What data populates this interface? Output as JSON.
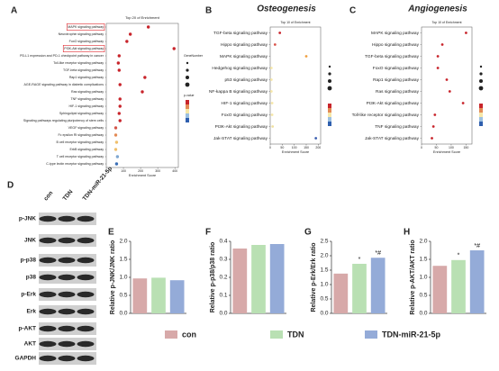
{
  "panels": [
    "A",
    "B",
    "C",
    "D",
    "E",
    "F",
    "G",
    "H"
  ],
  "blot": {
    "lanes": [
      "con",
      "TDN",
      "TDN-miR-21-5p"
    ],
    "rows": [
      "p-JNK",
      "JNK",
      "p-p38",
      "p38",
      "p-Erk",
      "Erk",
      "p-AKT",
      "AKT",
      "GAPDH"
    ]
  },
  "legend": [
    {
      "name": "con",
      "color": "#d7a9a9"
    },
    {
      "name": "TDN",
      "color": "#b9e0b3"
    },
    {
      "name": "TDN-miR-21-5p",
      "color": "#94abd8"
    }
  ],
  "chart_data": [
    {
      "type": "dot",
      "title": "Top 20 of Enrichment",
      "x_label": "Enrichment Score",
      "size_legend_title": "GeneNumber",
      "color_legend_title": "p-value",
      "categories": [
        "MAPK signaling pathway",
        "Neurotrophin signaling pathway",
        "FoxO signaling pathway",
        "PI3K-Akt signaling pathway",
        "PD-L1 expression and PD-1 checkpoint pathway in cancer",
        "Toll-like receptor signaling pathway",
        "TGF-beta signaling pathway",
        "Rap1 signaling pathway",
        "AGE-RAGE signaling pathway in diabetic complications",
        "Ras signaling pathway",
        "TNF signaling pathway",
        "HIF-1 signaling pathway",
        "Sphingolipid signaling pathway",
        "Signaling pathways regulating pluripotency of stem cells",
        "VEGF signaling pathway",
        "Fc epsilon RI signaling pathway",
        "B cell receptor signaling pathway",
        "ErbB signaling pathway",
        "T cell receptor signaling pathway",
        "C-type lectin receptor signaling pathway"
      ],
      "values": [
        245,
        140,
        120,
        395,
        75,
        70,
        75,
        225,
        80,
        210,
        80,
        80,
        75,
        80,
        55,
        55,
        60,
        55,
        65,
        60
      ],
      "colors": [
        "#c8242b",
        "#c8242b",
        "#c8242b",
        "#c8242b",
        "#c8242b",
        "#c8242b",
        "#c8242b",
        "#c8242b",
        "#c8242b",
        "#c8242b",
        "#c8242b",
        "#c8242b",
        "#c8242b",
        "#c8242b",
        "#d4564a",
        "#e38a55",
        "#f0c06d",
        "#f0c06d",
        "#7fa7d0",
        "#3b6fb6"
      ],
      "boxed": [
        true,
        false,
        false,
        true,
        false,
        false,
        false,
        false,
        false,
        false,
        false,
        false,
        false,
        false,
        false,
        false,
        false,
        false,
        false,
        false
      ],
      "xlim": [
        0,
        420
      ],
      "xticks": [
        0,
        100,
        200,
        300,
        400
      ]
    },
    {
      "type": "dot",
      "title": "Osteogenesis",
      "subtitle": "Top 10 of Enrichment",
      "x_label": "Enrichment Score",
      "categories": [
        "TGF-beta signaling pathway",
        "Hippo signaling pathway",
        "MAPK signaling pathway",
        "Hedgehog signaling pathway",
        "p53 signaling pathway",
        "NF-kappa B signaling pathway",
        "HIF-1 signaling pathway",
        "FoxO signaling pathway",
        "PI3K-Akt signaling pathway",
        "Jak-STAT signaling pathway"
      ],
      "values": [
        40,
        20,
        150,
        5,
        5,
        5,
        8,
        8,
        10,
        190
      ],
      "colors": [
        "#c8242b",
        "#d9534a",
        "#f0a040",
        "#f6e7a8",
        "#f6e7a8",
        "#f6e7a8",
        "#f6e7a8",
        "#f6e7a8",
        "#f0e0a0",
        "#3b5fb0"
      ],
      "label_colors": [
        "#333333",
        "#333333",
        "#e0242b",
        "#333333",
        "#333333",
        "#333333",
        "#333333",
        "#333333",
        "#e0242b",
        "#333333"
      ],
      "xlim": [
        0,
        210
      ],
      "xticks": [
        0,
        50,
        100,
        150,
        200
      ]
    },
    {
      "type": "dot",
      "title": "Angiogenesis",
      "subtitle": "Top 10 of Enrichment",
      "x_label": "Enrichment Score",
      "categories": [
        "MAPK signaling pathway",
        "Hippo signaling pathway",
        "TGF-beta signaling pathway",
        "FoxO signaling pathway",
        "Rap1 signaling pathway",
        "Ras signaling pathway",
        "PI3K-Akt signaling pathway",
        "Toll-like receptor signaling pathway",
        "TNF signaling pathway",
        "Jak-STAT signaling pathway"
      ],
      "values": [
        150,
        70,
        55,
        55,
        85,
        95,
        140,
        45,
        40,
        35
      ],
      "colors": [
        "#c8242b",
        "#c8242b",
        "#c8242b",
        "#c8242b",
        "#c8242b",
        "#c8242b",
        "#c8242b",
        "#c8242b",
        "#c8242b",
        "#c8242b"
      ],
      "label_colors": [
        "#e0242b",
        "#333333",
        "#333333",
        "#333333",
        "#333333",
        "#333333",
        "#e0242b",
        "#333333",
        "#333333",
        "#333333"
      ],
      "xlim": [
        0,
        170
      ],
      "xticks": [
        0,
        50,
        100,
        150
      ]
    },
    {
      "type": "bar",
      "y_label": "Relative p-JNK/JNK ratio",
      "categories": [
        "con",
        "TDN",
        "TDN-miR-21-5p"
      ],
      "values": [
        0.97,
        0.99,
        0.92
      ],
      "colors": [
        "#d7a9a9",
        "#b9e0b3",
        "#94abd8"
      ],
      "ylim": [
        0,
        2.0
      ],
      "yticks": [
        {
          "value": 0,
          "label": "0.0"
        },
        {
          "value": 0.5,
          "label": "0.5"
        },
        {
          "value": 1,
          "label": "1.0"
        },
        {
          "value": 1.5,
          "label": "1.5"
        },
        {
          "value": 2,
          "label": "2.0"
        }
      ]
    },
    {
      "type": "bar",
      "y_label": "Relative p-p38/p38 ratio",
      "categories": [
        "con",
        "TDN",
        "TDN-miR-21-5p"
      ],
      "values": [
        0.36,
        0.38,
        0.385
      ],
      "colors": [
        "#d7a9a9",
        "#b9e0b3",
        "#94abd8"
      ],
      "ylim": [
        0,
        0.4
      ],
      "yticks": [
        {
          "value": 0,
          "label": "0.0"
        },
        0.1,
        0.2,
        0.3,
        0.4
      ]
    },
    {
      "type": "bar",
      "y_label": "Relative p-Erk/Erk ratio",
      "categories": [
        "con",
        "TDN",
        "TDN-miR-21-5p"
      ],
      "values": [
        1.38,
        1.72,
        1.93
      ],
      "colors": [
        "#d7a9a9",
        "#b9e0b3",
        "#94abd8"
      ],
      "annotations": [
        null,
        "*",
        "*#"
      ],
      "ylim": [
        0,
        2.5
      ],
      "yticks": [
        {
          "value": 0,
          "label": "0.0"
        },
        0.5,
        {
          "value": 1,
          "label": "1.0"
        },
        1.5,
        {
          "value": 2,
          "label": "2.0"
        },
        2.5
      ]
    },
    {
      "type": "bar",
      "y_label": "Relative p-AKT/AKT ratio",
      "categories": [
        "con",
        "TDN",
        "TDN-miR-21-5p"
      ],
      "values": [
        1.32,
        1.48,
        1.75
      ],
      "colors": [
        "#d7a9a9",
        "#b9e0b3",
        "#94abd8"
      ],
      "annotations": [
        null,
        "*",
        "*#"
      ],
      "ylim": [
        0,
        2.0
      ],
      "yticks": [
        {
          "value": 0,
          "label": "0.0"
        },
        {
          "value": 0.5,
          "label": "0.5"
        },
        {
          "value": 1,
          "label": "1.0"
        },
        {
          "value": 1.5,
          "label": "1.5"
        },
        {
          "value": 2,
          "label": "2.0"
        }
      ]
    }
  ]
}
